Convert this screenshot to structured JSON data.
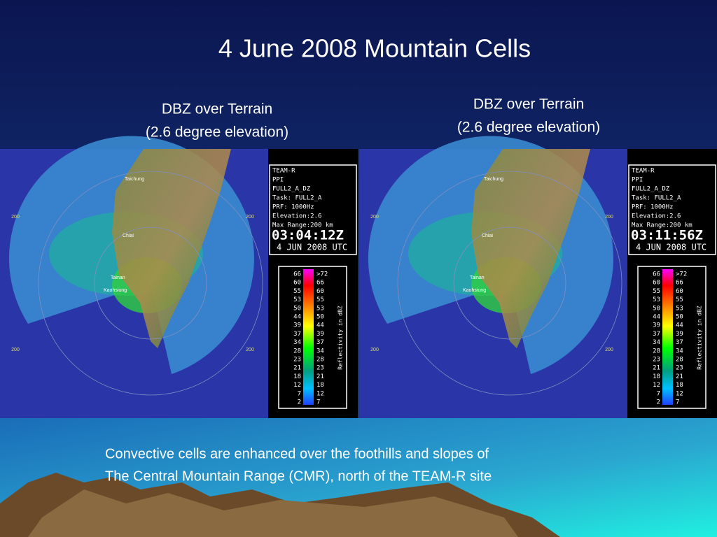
{
  "title": "4 June 2008 Mountain Cells",
  "panels": [
    {
      "caption": [
        "DBZ over Terrain",
        "(2.6 degree elevation)"
      ],
      "info": [
        "TEAM-R",
        "PPI",
        "FULL2_A_DZ",
        "Task: FULL2_A",
        "PRF: 1000Hz",
        "Elevation:2.6",
        "Max Range:200 km"
      ],
      "time": "03:04:12Z",
      "date": "4 JUN 2008 UTC",
      "scale_left": [
        "66",
        "60",
        "55",
        "53",
        "50",
        "44",
        "39",
        "37",
        "34",
        "28",
        "23",
        "21",
        "18",
        "12",
        "7",
        "2"
      ],
      "scale_right": [
        ">72",
        "66",
        "60",
        "55",
        "53",
        "50",
        "44",
        "39",
        "37",
        "34",
        "28",
        "23",
        "21",
        "18",
        "12",
        "7"
      ],
      "scale_title": "Reflectivity in dBZ",
      "map_labels": [
        "Taichung",
        "Chiai",
        "Tainan",
        "Kaohsiung"
      ],
      "range_labels": [
        "200",
        "200",
        "200",
        "200"
      ]
    },
    {
      "caption": [
        "DBZ over Terrain",
        "(2.6 degree elevation)"
      ],
      "info": [
        "TEAM-R",
        "PPI",
        "FULL2_A_DZ",
        "Task: FULL2_A",
        "PRF: 1000Hz",
        "Elevation:2.6",
        "Max Range:200 km"
      ],
      "time": "03:11:56Z",
      "date": "4 JUN 2008 UTC",
      "scale_left": [
        "66",
        "60",
        "55",
        "53",
        "50",
        "44",
        "39",
        "37",
        "34",
        "28",
        "23",
        "21",
        "18",
        "12",
        "7",
        "2"
      ],
      "scale_right": [
        ">72",
        "66",
        "60",
        "55",
        "53",
        "50",
        "44",
        "39",
        "37",
        "34",
        "28",
        "23",
        "21",
        "18",
        "12",
        "7"
      ],
      "scale_title": "Reflectivity in dBZ",
      "map_labels": [
        "Taichung",
        "Chiai",
        "Tainan",
        "Kaohsiung"
      ],
      "range_labels": [
        "200",
        "200",
        "200",
        "200"
      ]
    }
  ],
  "caption": [
    "Convective cells are enhanced over the foothills and slopes of",
    "The Central Mountain Range (CMR), north of the TEAM-R site"
  ]
}
